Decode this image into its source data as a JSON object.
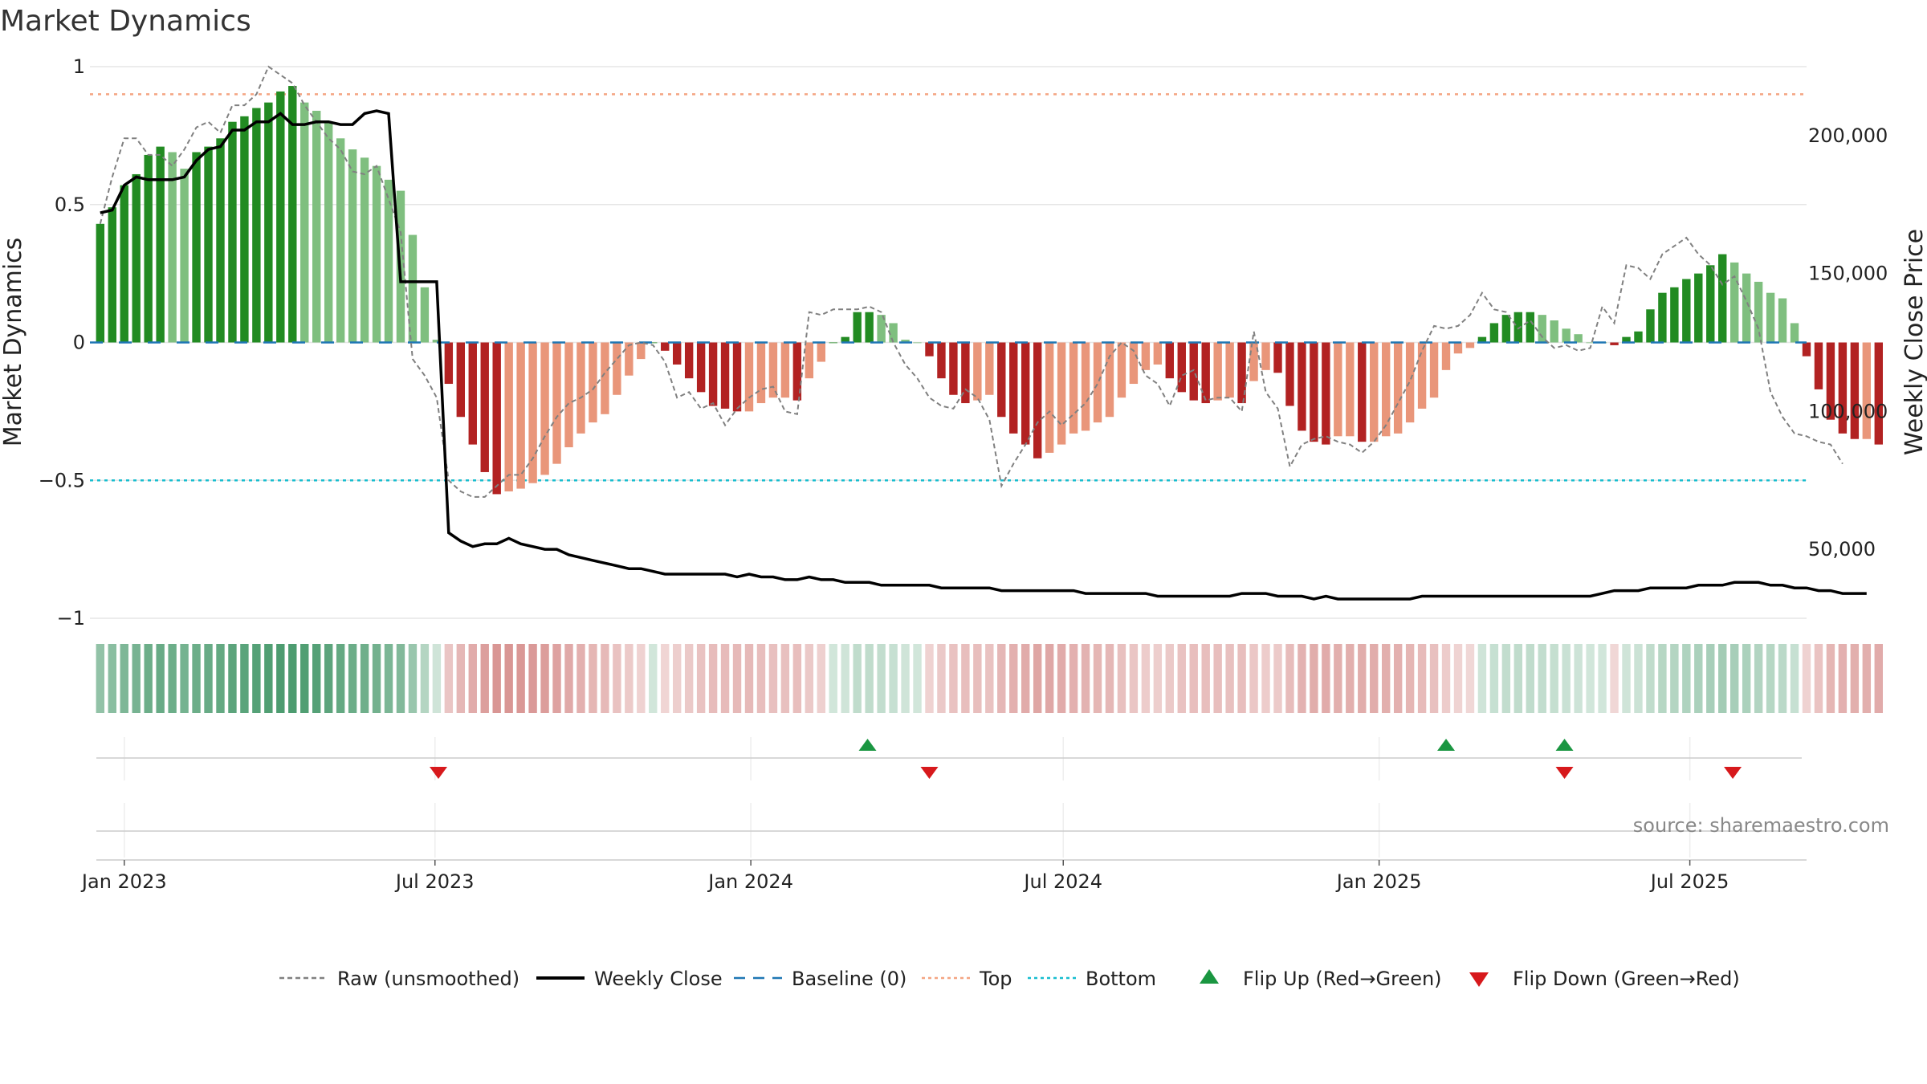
{
  "chart_data": {
    "type": "bar",
    "title": "Market Dynamics",
    "ylabel": "Market Dynamics",
    "y2label": "Weekly Close Price",
    "ylim": [
      -1,
      1
    ],
    "y2lim": [
      25000,
      225000
    ],
    "yticks": [
      {
        "value": 1,
        "label": "1"
      },
      {
        "value": 0.5,
        "label": "0.5"
      },
      {
        "value": 0,
        "label": "0"
      },
      {
        "value": -0.5,
        "label": "−0.5"
      },
      {
        "value": -1,
        "label": "−1"
      }
    ],
    "y2ticks": [
      {
        "value": 200000,
        "label": "200,000"
      },
      {
        "value": 150000,
        "label": "150,000"
      },
      {
        "value": 100000,
        "label": "100,000"
      },
      {
        "value": 50000,
        "label": "50,000"
      }
    ],
    "xlim": [
      "2022-12-12",
      "2025-09-07"
    ],
    "xticks": [
      {
        "date": "2023-01-01",
        "label": "Jan 2023"
      },
      {
        "date": "2023-07-01",
        "label": "Jul 2023"
      },
      {
        "date": "2024-01-01",
        "label": "Jan 2024"
      },
      {
        "date": "2024-07-01",
        "label": "Jul 2024"
      },
      {
        "date": "2025-01-01",
        "label": "Jan 2025"
      },
      {
        "date": "2025-07-01",
        "label": "Jul 2025"
      }
    ],
    "start_date": "2022-12-18",
    "week_step_days": 7,
    "grid": true,
    "legend_position": "bottom-center",
    "series": [
      {
        "name": "Market Dynamics",
        "kind": "bar",
        "values": [
          0.43,
          0.49,
          0.57,
          0.61,
          0.68,
          0.71,
          0.69,
          0.63,
          0.69,
          0.71,
          0.74,
          0.8,
          0.82,
          0.85,
          0.87,
          0.91,
          0.93,
          0.87,
          0.84,
          0.8,
          0.74,
          0.7,
          0.67,
          0.64,
          0.59,
          0.55,
          0.39,
          0.2,
          0.01,
          -0.15,
          -0.27,
          -0.37,
          -0.47,
          -0.55,
          -0.54,
          -0.53,
          -0.51,
          -0.48,
          -0.44,
          -0.38,
          -0.33,
          -0.29,
          -0.26,
          -0.19,
          -0.12,
          -0.06,
          0.0,
          -0.03,
          -0.08,
          -0.13,
          -0.18,
          -0.23,
          -0.24,
          -0.25,
          -0.25,
          -0.22,
          -0.2,
          -0.2,
          -0.21,
          -0.13,
          -0.07,
          0.0,
          0.02,
          0.11,
          0.11,
          0.1,
          0.07,
          0.01,
          0.0,
          -0.05,
          -0.13,
          -0.19,
          -0.22,
          -0.21,
          -0.19,
          -0.27,
          -0.33,
          -0.37,
          -0.42,
          -0.4,
          -0.37,
          -0.33,
          -0.32,
          -0.29,
          -0.27,
          -0.2,
          -0.15,
          -0.1,
          -0.08,
          -0.13,
          -0.18,
          -0.21,
          -0.22,
          -0.21,
          -0.2,
          -0.22,
          -0.14,
          -0.1,
          -0.11,
          -0.23,
          -0.32,
          -0.36,
          -0.37,
          -0.34,
          -0.34,
          -0.36,
          -0.36,
          -0.34,
          -0.33,
          -0.29,
          -0.24,
          -0.2,
          -0.1,
          -0.04,
          -0.02,
          0.02,
          0.07,
          0.1,
          0.11,
          0.11,
          0.1,
          0.08,
          0.05,
          0.03,
          0.0,
          0.0,
          -0.01,
          0.02,
          0.04,
          0.12,
          0.18,
          0.2,
          0.23,
          0.25,
          0.28,
          0.32,
          0.29,
          0.25,
          0.22,
          0.18,
          0.16,
          0.07,
          -0.05,
          -0.17,
          -0.28,
          -0.33,
          -0.35,
          -0.35,
          -0.37
        ]
      },
      {
        "name": "Raw (unsmoothed)",
        "kind": "line",
        "values": [
          0.43,
          0.6,
          0.74,
          0.74,
          0.68,
          0.68,
          0.64,
          0.7,
          0.78,
          0.8,
          0.76,
          0.86,
          0.86,
          0.9,
          1.0,
          0.97,
          0.94,
          0.86,
          0.8,
          0.74,
          0.7,
          0.62,
          0.61,
          0.64,
          0.52,
          0.4,
          -0.06,
          -0.12,
          -0.2,
          -0.5,
          -0.54,
          -0.56,
          -0.56,
          -0.52,
          -0.48,
          -0.48,
          -0.42,
          -0.34,
          -0.27,
          -0.22,
          -0.2,
          -0.17,
          -0.11,
          -0.06,
          -0.01,
          0.0,
          -0.01,
          -0.07,
          -0.2,
          -0.18,
          -0.24,
          -0.22,
          -0.3,
          -0.24,
          -0.2,
          -0.17,
          -0.16,
          -0.25,
          -0.26,
          0.11,
          0.1,
          0.12,
          0.12,
          0.12,
          0.13,
          0.11,
          0.0,
          -0.08,
          -0.13,
          -0.2,
          -0.23,
          -0.24,
          -0.17,
          -0.2,
          -0.28,
          -0.52,
          -0.44,
          -0.37,
          -0.29,
          -0.25,
          -0.3,
          -0.26,
          -0.22,
          -0.15,
          -0.05,
          0.0,
          -0.03,
          -0.12,
          -0.15,
          -0.23,
          -0.12,
          -0.1,
          -0.21,
          -0.2,
          -0.2,
          -0.25,
          0.04,
          -0.18,
          -0.24,
          -0.45,
          -0.37,
          -0.35,
          -0.34,
          -0.36,
          -0.37,
          -0.4,
          -0.36,
          -0.3,
          -0.22,
          -0.14,
          -0.03,
          0.06,
          0.05,
          0.06,
          0.1,
          0.18,
          0.12,
          0.11,
          0.05,
          0.08,
          0.02,
          -0.02,
          -0.01,
          -0.03,
          -0.02,
          0.13,
          0.07,
          0.28,
          0.27,
          0.23,
          0.32,
          0.35,
          0.38,
          0.32,
          0.28,
          0.21,
          0.24,
          0.15,
          0.05,
          -0.18,
          -0.27,
          -0.33,
          -0.34,
          -0.36,
          -0.37,
          -0.44
        ]
      },
      {
        "name": "Weekly Close",
        "kind": "line",
        "axis": "right",
        "values": [
          172000,
          173000,
          182000,
          185000,
          184000,
          184000,
          184000,
          185000,
          191000,
          195000,
          196000,
          202000,
          202000,
          205000,
          205000,
          208000,
          204000,
          204000,
          205000,
          205000,
          204000,
          204000,
          208000,
          209000,
          208000,
          147000,
          147000,
          147000,
          147000,
          56000,
          53000,
          51000,
          52000,
          52000,
          54000,
          52000,
          51000,
          50000,
          50000,
          48000,
          47000,
          46000,
          45000,
          44000,
          43000,
          43000,
          42000,
          41000,
          41000,
          41000,
          41000,
          41000,
          41000,
          40000,
          41000,
          40000,
          40000,
          39000,
          39000,
          40000,
          39000,
          39000,
          38000,
          38000,
          38000,
          37000,
          37000,
          37000,
          37000,
          37000,
          36000,
          36000,
          36000,
          36000,
          36000,
          35000,
          35000,
          35000,
          35000,
          35000,
          35000,
          35000,
          34000,
          34000,
          34000,
          34000,
          34000,
          34000,
          33000,
          33000,
          33000,
          33000,
          33000,
          33000,
          33000,
          34000,
          34000,
          34000,
          33000,
          33000,
          33000,
          32000,
          33000,
          32000,
          32000,
          32000,
          32000,
          32000,
          32000,
          32000,
          33000,
          33000,
          33000,
          33000,
          33000,
          33000,
          33000,
          33000,
          33000,
          33000,
          33000,
          33000,
          33000,
          33000,
          33000,
          34000,
          35000,
          35000,
          35000,
          36000,
          36000,
          36000,
          36000,
          37000,
          37000,
          37000,
          38000,
          38000,
          38000,
          37000,
          37000,
          36000,
          36000,
          35000,
          35000,
          34000,
          34000,
          34000
        ]
      },
      {
        "name": "Baseline (0)",
        "kind": "hline",
        "value": 0,
        "color": "#1f77b4"
      },
      {
        "name": "Top",
        "kind": "hline",
        "value": 0.9,
        "color": "#f4a582"
      },
      {
        "name": "Bottom",
        "kind": "hline",
        "value": -0.5,
        "color": "#17becf"
      },
      {
        "name": "Flip Up (Red→Green)",
        "kind": "marker",
        "dates": [
          "2024-03-09",
          "2025-02-09",
          "2025-04-19"
        ]
      },
      {
        "name": "Flip Down (Green→Red)",
        "kind": "marker",
        "dates": [
          "2023-07-03",
          "2024-04-14",
          "2025-04-19",
          "2025-07-26"
        ]
      }
    ],
    "colors": {
      "bar_green_strong": "#228b22",
      "bar_green_weak": "#7fbf7f",
      "bar_red_strong": "#b22222",
      "bar_red_weak": "#e9967a",
      "raw_line": "#808080",
      "close_line": "#000000",
      "flip_up": "#1a9641",
      "flip_down": "#d7191c",
      "strip_green": "#2e8b57",
      "strip_red": "#c0504d"
    },
    "legend": [
      {
        "label": "Raw (unsmoothed)",
        "style": "dashed",
        "color": "#808080"
      },
      {
        "label": "Weekly Close",
        "style": "solid",
        "color": "#000000"
      },
      {
        "label": "Baseline (0)",
        "style": "dashed-long",
        "color": "#1f77b4"
      },
      {
        "label": "Top",
        "style": "dotted",
        "color": "#f4a582"
      },
      {
        "label": "Bottom",
        "style": "dotted",
        "color": "#17becf"
      },
      {
        "label": "Flip Up (Red→Green)",
        "style": "triangle-up",
        "color": "#1a9641"
      },
      {
        "label": "Flip Down (Green→Red)",
        "style": "triangle-down",
        "color": "#d7191c"
      }
    ],
    "source": "source: sharemaestro.com"
  }
}
